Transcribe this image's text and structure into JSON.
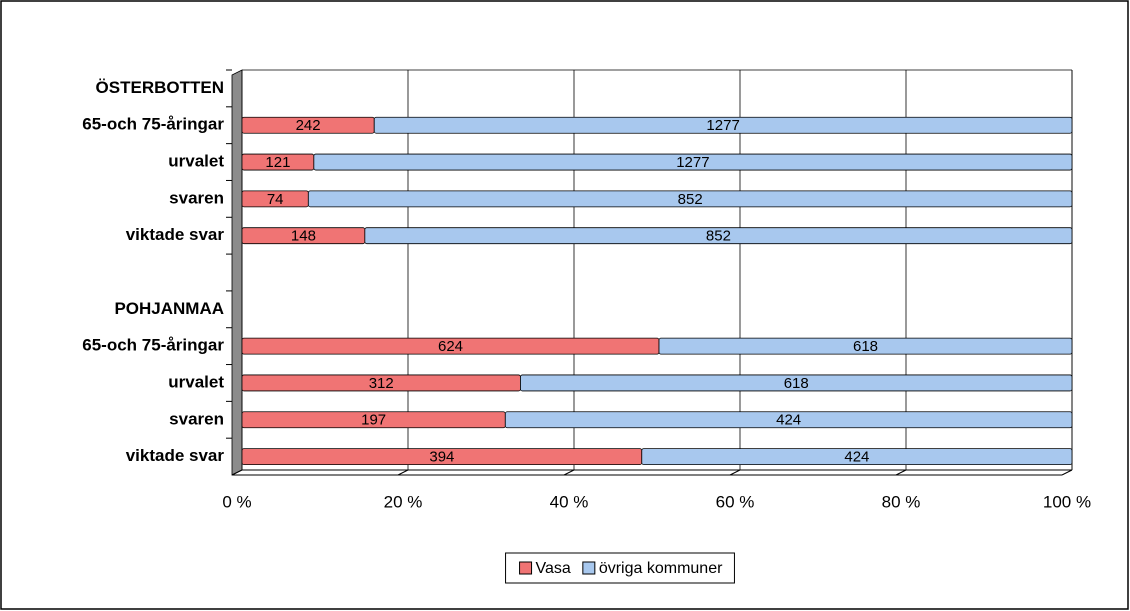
{
  "chart_data": {
    "type": "bar",
    "orientation": "horizontal",
    "stacking": "percent",
    "categories": [
      "ÖSTERBOTTEN",
      "65-och 75-åringar",
      "urvalet",
      "svaren",
      "viktade svar",
      null,
      "POHJANMAA",
      "65-och 75-åringar",
      "urvalet",
      "svaren",
      "viktade svar"
    ],
    "series": [
      {
        "name": "Vasa",
        "color": "#f07474",
        "values": [
          null,
          242,
          121,
          74,
          148,
          null,
          null,
          624,
          312,
          197,
          394
        ]
      },
      {
        "name": "övriga kommuner",
        "color": "#a8c8ee",
        "values": [
          null,
          1277,
          1277,
          852,
          852,
          null,
          null,
          618,
          618,
          424,
          424
        ]
      }
    ],
    "xlim": [
      0,
      100
    ],
    "xticks": [
      {
        "value": 0,
        "label": "0 %"
      },
      {
        "value": 20,
        "label": "20 %"
      },
      {
        "value": 40,
        "label": "40 %"
      },
      {
        "value": 60,
        "label": "60 %"
      },
      {
        "value": 80,
        "label": "80 %"
      },
      {
        "value": 100,
        "label": "100 %"
      }
    ],
    "grid": true,
    "legend": "bottom"
  }
}
